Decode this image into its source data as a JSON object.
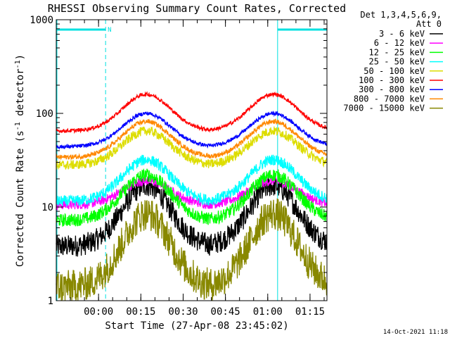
{
  "chart_data": {
    "type": "line",
    "title": "RHESSI Observing Summary Count Rates, Corrected",
    "xlabel": "Start Time (27-Apr-08 23:45:02)",
    "ylabel_main": "Corrected Count Rate (s",
    "ylabel_sup1": "-1",
    "ylabel_mid": " detector",
    "ylabel_sup2": "-1",
    "ylabel_end": ")",
    "yscale": "log",
    "ylim": [
      1,
      1000
    ],
    "xlim_minutes": [
      0,
      96
    ],
    "x_ticks": [
      {
        "minute": 15,
        "label": "00:00"
      },
      {
        "minute": 30,
        "label": "00:15"
      },
      {
        "minute": 45,
        "label": "00:30"
      },
      {
        "minute": 60,
        "label": "00:45"
      },
      {
        "minute": 75,
        "label": "01:00"
      },
      {
        "minute": 90,
        "label": "01:15"
      }
    ],
    "y_ticks": [
      {
        "value": 1,
        "label": "1"
      },
      {
        "value": 10,
        "label": "10"
      },
      {
        "value": 100,
        "label": "100"
      },
      {
        "value": 1000,
        "label": "1000"
      }
    ],
    "legend_header_1": "Det 1,3,4,5,6,9,",
    "legend_header_2": "Att 0",
    "legend_placement": "right",
    "series": [
      {
        "name": "3 - 6 keV",
        "color": "#000000",
        "base": 3.8,
        "peak": 17,
        "noise": 0.12
      },
      {
        "name": "6 - 12 keV",
        "color": "#ff00ff",
        "base": 10.5,
        "peak": 19,
        "noise": 0.05
      },
      {
        "name": "12 - 25 keV",
        "color": "#00ff00",
        "base": 7.2,
        "peak": 22,
        "noise": 0.07
      },
      {
        "name": "25 - 50 keV",
        "color": "#00ffff",
        "base": 11.5,
        "peak": 32,
        "noise": 0.06
      },
      {
        "name": "50 - 100 keV",
        "color": "#dddd00",
        "base": 28,
        "peak": 65,
        "noise": 0.05
      },
      {
        "name": "100 - 300 keV",
        "color": "#ff0000",
        "base": 65,
        "peak": 160,
        "noise": 0.02
      },
      {
        "name": "300 - 800 keV",
        "color": "#0000ff",
        "base": 44,
        "peak": 100,
        "noise": 0.02
      },
      {
        "name": "800 - 7000 keV",
        "color": "#ff8800",
        "base": 34,
        "peak": 82,
        "noise": 0.025
      },
      {
        "name": "7000 - 15000 keV",
        "color": "#888800",
        "base": 1.4,
        "peak": 8.5,
        "noise": 0.18
      }
    ],
    "peaks_minutes": [
      32,
      77
    ],
    "peak_width_minutes": 8.5,
    "flag_markers": [
      {
        "label": "N"
      }
    ],
    "flag_intervals": [
      [
        0,
        17.5
      ],
      [
        78.5,
        96
      ]
    ],
    "dashed_lines_minutes": [
      17.5,
      96
    ],
    "solid_lines_minutes": [
      0,
      78.5
    ],
    "timestamp": "14-Oct-2021 11:18"
  }
}
